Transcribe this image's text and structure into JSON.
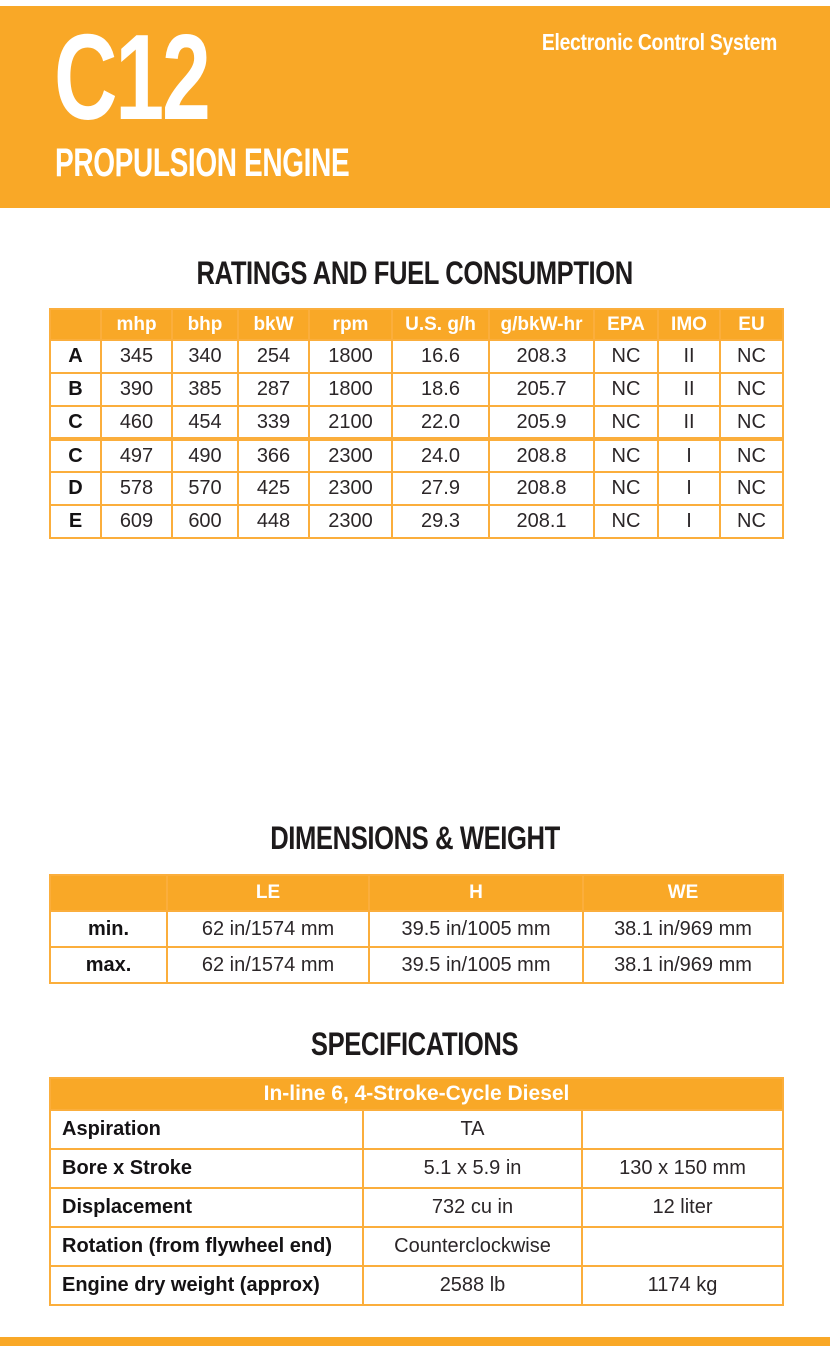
{
  "colors": {
    "accent": "#F9A827",
    "table_border": "#FBAE3C",
    "heading_text": "#1D1A1B",
    "band_text": "#FFFFFF"
  },
  "header": {
    "model": "C12",
    "engine_type": "PROPULSION ENGINE",
    "tagline": "Electronic Control System"
  },
  "ratings": {
    "title": "RATINGS AND FUEL CONSUMPTION",
    "columns": [
      "",
      "mhp",
      "bhp",
      "bkW",
      "rpm",
      "U.S. g/h",
      "g/bkW-hr",
      "EPA",
      "IMO",
      "EU"
    ],
    "rows": [
      {
        "label": "A",
        "values": [
          "345",
          "340",
          "254",
          "1800",
          "16.6",
          "208.3",
          "NC",
          "II",
          "NC"
        ]
      },
      {
        "label": "B",
        "values": [
          "390",
          "385",
          "287",
          "1800",
          "18.6",
          "205.7",
          "NC",
          "II",
          "NC"
        ]
      },
      {
        "label": "C",
        "values": [
          "460",
          "454",
          "339",
          "2100",
          "22.0",
          "205.9",
          "NC",
          "II",
          "NC"
        ]
      },
      {
        "label": "C",
        "values": [
          "497",
          "490",
          "366",
          "2300",
          "24.0",
          "208.8",
          "NC",
          "I",
          "NC"
        ]
      },
      {
        "label": "D",
        "values": [
          "578",
          "570",
          "425",
          "2300",
          "27.9",
          "208.8",
          "NC",
          "I",
          "NC"
        ]
      },
      {
        "label": "E",
        "values": [
          "609",
          "600",
          "448",
          "2300",
          "29.3",
          "208.1",
          "NC",
          "I",
          "NC"
        ]
      }
    ]
  },
  "dimensions": {
    "title": "DIMENSIONS & WEIGHT",
    "columns": [
      "",
      "LE",
      "H",
      "WE"
    ],
    "rows": [
      {
        "label": "min.",
        "values": [
          "62 in/1574 mm",
          "39.5 in/1005 mm",
          "38.1 in/969 mm"
        ]
      },
      {
        "label": "max.",
        "values": [
          "62 in/1574 mm",
          "39.5 in/1005 mm",
          "38.1 in/969 mm"
        ]
      }
    ]
  },
  "specifications": {
    "title": "SPECIFICATIONS",
    "header": "In-line 6, 4-Stroke-Cycle Diesel",
    "rows": [
      {
        "label": "Aspiration",
        "values": [
          "TA",
          ""
        ]
      },
      {
        "label": "Bore x Stroke",
        "values": [
          "5.1 x 5.9 in",
          "130 x 150 mm"
        ]
      },
      {
        "label": "Displacement",
        "values": [
          "732 cu in",
          "12 liter"
        ]
      },
      {
        "label": "Rotation (from flywheel end)",
        "values": [
          "Counterclockwise",
          ""
        ]
      },
      {
        "label": "Engine dry weight (approx)",
        "values": [
          "2588 lb",
          "1174 kg"
        ]
      }
    ]
  }
}
